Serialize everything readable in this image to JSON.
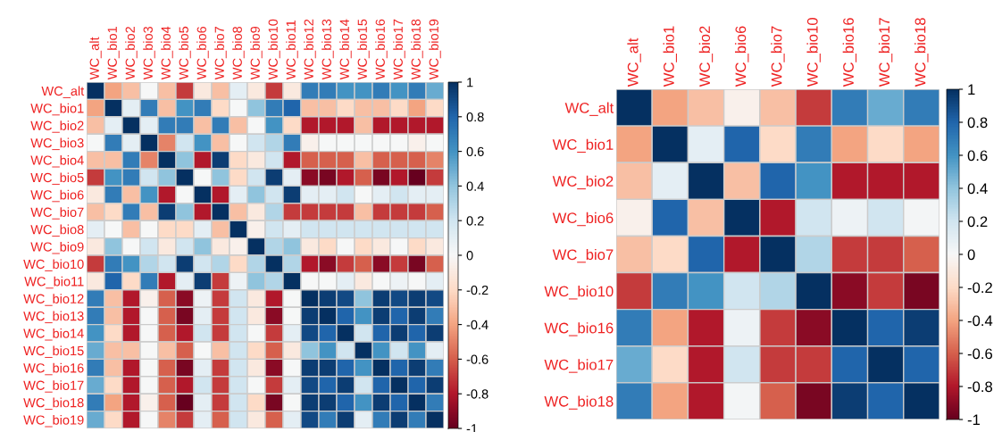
{
  "chart_data": [
    {
      "type": "heatmap",
      "categories": [
        "WC_alt",
        "WC_bio1",
        "WC_bio2",
        "WC_bio3",
        "WC_bio4",
        "WC_bio5",
        "WC_bio6",
        "WC_bio7",
        "WC_bio8",
        "WC_bio9",
        "WC_bio10",
        "WC_bio11",
        "WC_bio12",
        "WC_bio13",
        "WC_bio14",
        "WC_bio15",
        "WC_bio16",
        "WC_bio17",
        "WC_bio18",
        "WC_bio19"
      ],
      "y_categories": [
        "WC_alt",
        "WC_bio1",
        "WC_bio2",
        "WC_bio3",
        "WC_bio4",
        "WC_bio5",
        "WC_bio6",
        "WC_bio7",
        "WC_bio8",
        "WC_bio9",
        "WC_bio10",
        "WC_bio11",
        "WC_bio12",
        "WC_bio13",
        "WC_bio14",
        "WC_bio15",
        "WC_bio16",
        "WC_bio17",
        "WC_bio18",
        "WC_bio19"
      ],
      "cells": [
        [
          1,
          -0.4,
          -0.3,
          0,
          -0.3,
          -0.7,
          -0.1,
          -0.3,
          0.1,
          -0.1,
          -0.7,
          -0.1,
          0.7,
          0.7,
          0.6,
          0.6,
          0.7,
          0.6,
          0.7,
          0.5
        ],
        [
          -0.4,
          1,
          0.1,
          0.7,
          -0.3,
          0.6,
          0.7,
          -0.2,
          0,
          0.4,
          0.7,
          0.8,
          -0.3,
          -0.3,
          -0.2,
          -0.3,
          -0.3,
          -0.2,
          -0.4,
          -0.2
        ],
        [
          -0.3,
          0.1,
          1,
          0.1,
          0.7,
          0.7,
          -0.3,
          0.7,
          -0.3,
          0,
          0.6,
          -0.2,
          -0.8,
          -0.8,
          -0.8,
          -0.3,
          -0.8,
          -0.8,
          -0.8,
          -0.8
        ],
        [
          0,
          0.7,
          0.1,
          1,
          -0.5,
          0.2,
          0.6,
          -0.3,
          0,
          0.2,
          0.3,
          0.7,
          -0.05,
          0,
          0,
          0,
          0,
          0,
          -0.05,
          0
        ],
        [
          -0.3,
          -0.3,
          0.7,
          -0.5,
          1,
          0.4,
          -0.8,
          0.95,
          -0.2,
          -0.1,
          0.2,
          -0.8,
          -0.6,
          -0.6,
          -0.6,
          -0.3,
          -0.6,
          -0.6,
          -0.6,
          -0.5
        ],
        [
          -0.7,
          0.6,
          0.7,
          0.2,
          0.4,
          1,
          0,
          0.4,
          -0.2,
          0.2,
          0.95,
          0.1,
          -0.9,
          -0.95,
          -0.8,
          -0.6,
          -0.95,
          -0.8,
          -1,
          -0.7
        ],
        [
          -0.1,
          0.7,
          -0.3,
          0.6,
          -0.8,
          0,
          1,
          -0.8,
          0.1,
          0.4,
          0.2,
          0.95,
          0.1,
          0.1,
          0.2,
          0,
          0.1,
          0.2,
          0.1,
          0.1
        ],
        [
          -0.3,
          -0.2,
          0.7,
          -0.3,
          0.95,
          0.4,
          -0.8,
          1,
          -0.3,
          -0.1,
          0.3,
          -0.7,
          -0.7,
          -0.7,
          -0.7,
          -0.3,
          -0.7,
          -0.7,
          -0.7,
          -0.6
        ],
        [
          0.1,
          0,
          -0.3,
          0,
          -0.2,
          -0.2,
          0.1,
          -0.3,
          1,
          -0.05,
          0.2,
          0.1,
          0.2,
          0.2,
          0.2,
          0.2,
          0.2,
          0.2,
          0.2,
          0.2
        ],
        [
          -0.1,
          0.4,
          0,
          0.2,
          -0.1,
          0.2,
          0.4,
          -0.1,
          -0.05,
          1,
          0.3,
          0.4,
          -0.1,
          -0.2,
          0,
          -0.2,
          -0.1,
          0,
          -0.2,
          -0.1
        ],
        [
          -0.7,
          0.7,
          0.6,
          0.3,
          0.2,
          0.95,
          0.2,
          0.3,
          -0.2,
          0.3,
          1,
          0.3,
          -0.8,
          -0.9,
          -0.7,
          -0.6,
          -0.9,
          -0.7,
          -0.95,
          -0.6
        ],
        [
          -0.1,
          0.8,
          -0.2,
          0.7,
          -0.8,
          0.1,
          0.95,
          -0.7,
          0.05,
          0.4,
          0.3,
          1,
          0,
          0,
          0.1,
          -0.1,
          0,
          0.05,
          0,
          0.1
        ],
        [
          0.7,
          -0.3,
          -0.8,
          -0.05,
          -0.6,
          -0.9,
          0.05,
          -0.7,
          0.2,
          -0.1,
          -0.8,
          0,
          1,
          0.95,
          0.9,
          0.4,
          0.95,
          0.9,
          0.95,
          0.9
        ],
        [
          0.7,
          -0.3,
          -0.8,
          0,
          -0.6,
          -0.95,
          0.1,
          -0.7,
          0.2,
          -0.1,
          -0.9,
          0,
          0.95,
          1,
          0.8,
          0.6,
          0.95,
          0.8,
          0.95,
          0.7
        ],
        [
          0.6,
          -0.2,
          -0.8,
          0,
          -0.6,
          -0.8,
          0.2,
          -0.7,
          0.2,
          0,
          -0.7,
          0.1,
          0.9,
          0.8,
          1,
          0.2,
          0.8,
          0.95,
          0.8,
          0.95
        ],
        [
          0.5,
          -0.3,
          -0.3,
          0,
          -0.3,
          -0.6,
          0,
          -0.3,
          0.2,
          -0.2,
          -0.6,
          -0.1,
          0.4,
          0.6,
          0.2,
          1,
          0.6,
          0.2,
          0.6,
          0.1
        ],
        [
          0.7,
          -0.3,
          -0.8,
          0,
          -0.6,
          -0.95,
          0.1,
          -0.7,
          0.2,
          -0.1,
          -0.9,
          0,
          0.95,
          0.95,
          0.8,
          0.6,
          1,
          0.8,
          0.95,
          0.7
        ],
        [
          0.5,
          -0.2,
          -0.8,
          0,
          -0.6,
          -0.8,
          0.2,
          -0.7,
          0.2,
          0,
          -0.7,
          0.1,
          0.9,
          0.8,
          0.95,
          0.2,
          0.8,
          1,
          0.8,
          0.95
        ],
        [
          0.7,
          -0.4,
          -0.8,
          -0.05,
          -0.6,
          -1,
          0.1,
          -0.7,
          0.2,
          -0.2,
          -0.95,
          0,
          0.95,
          0.95,
          0.8,
          0.6,
          0.95,
          0.8,
          1,
          0.7
        ],
        [
          0.5,
          -0.2,
          -0.8,
          0,
          -0.5,
          -0.7,
          0.1,
          -0.6,
          0.2,
          -0.1,
          -0.6,
          0.1,
          0.9,
          0.7,
          0.95,
          0.1,
          0.7,
          0.95,
          0.7,
          1
        ]
      ],
      "clim": [
        -1,
        1
      ],
      "cticks": [
        -1,
        -0.8,
        -0.6,
        -0.4,
        -0.2,
        0,
        0.2,
        0.4,
        0.6,
        0.8,
        1
      ]
    },
    {
      "type": "heatmap",
      "categories": [
        "WC_alt",
        "WC_bio1",
        "WC_bio2",
        "WC_bio6",
        "WC_bio7",
        "WC_bio10",
        "WC_bio16",
        "WC_bio17",
        "WC_bio18"
      ],
      "y_categories": [
        "WC_alt",
        "WC_bio1",
        "WC_bio2",
        "WC_bio6",
        "WC_bio7",
        "WC_bio10",
        "WC_bio16",
        "WC_bio17",
        "WC_bio18"
      ],
      "cells": [
        [
          1,
          -0.4,
          -0.3,
          -0.05,
          -0.3,
          -0.7,
          0.7,
          0.5,
          0.7
        ],
        [
          -0.4,
          1,
          0.1,
          0.8,
          -0.2,
          0.7,
          -0.4,
          -0.2,
          -0.4
        ],
        [
          -0.3,
          0.1,
          1,
          -0.3,
          0.8,
          0.6,
          -0.8,
          -0.8,
          -0.8
        ],
        [
          -0.05,
          0.8,
          -0.3,
          1,
          -0.8,
          0.2,
          0.05,
          0.2,
          0.02
        ],
        [
          -0.3,
          -0.2,
          0.8,
          -0.8,
          1,
          0.3,
          -0.7,
          -0.7,
          -0.6
        ],
        [
          -0.7,
          0.7,
          0.6,
          0.2,
          0.3,
          1,
          -0.9,
          -0.7,
          -0.95
        ],
        [
          0.7,
          -0.4,
          -0.8,
          0.05,
          -0.7,
          -0.9,
          1,
          0.8,
          0.95
        ],
        [
          0.5,
          -0.2,
          -0.8,
          0.2,
          -0.7,
          -0.7,
          0.8,
          1,
          0.8
        ],
        [
          0.7,
          -0.4,
          -0.8,
          0.02,
          -0.6,
          -0.95,
          0.95,
          0.8,
          1
        ]
      ],
      "clim": [
        -1,
        1
      ],
      "cticks": [
        -1,
        -0.8,
        -0.6,
        -0.4,
        -0.2,
        0,
        0.2,
        0.4,
        0.6,
        0.8,
        1
      ]
    }
  ]
}
